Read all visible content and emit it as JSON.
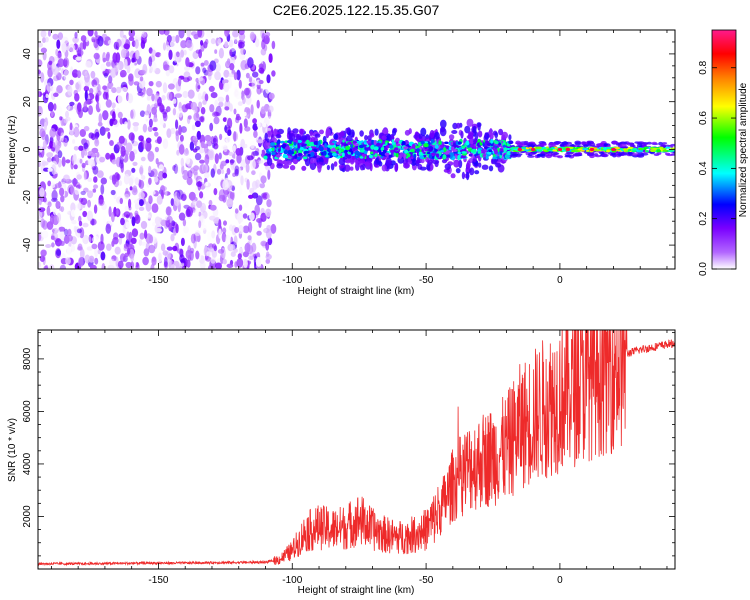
{
  "title": "C2E6.2025.122.15.35.G07",
  "chart_data": [
    {
      "type": "heatmap",
      "title": "C2E6.2025.122.15.35.G07",
      "xlabel": "Height of straight line (km)",
      "ylabel": "Frequency (Hz)",
      "xlim": [
        -195,
        43
      ],
      "ylim": [
        -50,
        50
      ],
      "x_ticks": [
        "-150",
        "-100",
        "-50",
        "0"
      ],
      "y_ticks": [
        "-40",
        "-20",
        "0",
        "20",
        "40"
      ],
      "colorbar": {
        "label": "Normalized spectral amplitude",
        "range": [
          0,
          0.95
        ],
        "ticks": [
          "0.0",
          "0.2",
          "0.4",
          "0.6",
          "0.8"
        ],
        "colors": [
          "#ffffff",
          "#9400d3",
          "#0000ff",
          "#00ffff",
          "#00ff00",
          "#ffff00",
          "#ff7f00",
          "#ff0000",
          "#ff1493"
        ]
      },
      "regions": [
        {
          "x": [
            -195,
            -107
          ],
          "freq_spread": [
            -50,
            50
          ],
          "amplitude": [
            0.0,
            0.2
          ],
          "description_color": "purple"
        },
        {
          "x": [
            -110,
            -18
          ],
          "freq_spread": [
            -8,
            8
          ],
          "amplitude": [
            0.1,
            0.5
          ]
        },
        {
          "x": [
            -18,
            43
          ],
          "freq_spread": [
            -3,
            3
          ],
          "amplitude": [
            0.1,
            0.9
          ]
        }
      ]
    },
    {
      "type": "line",
      "xlabel": "Height of straight line (km)",
      "ylabel": "SNR (10 * v/v)",
      "xlim": [
        -195,
        43
      ],
      "ylim": [
        0,
        9100
      ],
      "x_ticks": [
        "-150",
        "-100",
        "-50",
        "0"
      ],
      "y_ticks": [
        "2000",
        "4000",
        "6000",
        "8000"
      ],
      "line_color": "#ee2a2a",
      "series": [
        {
          "x": [
            -195,
            -180,
            -160,
            -140,
            -120,
            -110,
            -105,
            -100,
            -95,
            -90,
            -85,
            -80,
            -75,
            -70,
            -65,
            -60,
            -55,
            -50,
            -45,
            -40,
            -35,
            -30,
            -25,
            -20,
            -15,
            -10,
            -5,
            0,
            5,
            10,
            15,
            20,
            25,
            30,
            35,
            40,
            43
          ],
          "values": [
            200,
            200,
            220,
            230,
            250,
            260,
            350,
            700,
            1400,
            1600,
            1500,
            1600,
            1900,
            1500,
            1300,
            1200,
            1300,
            1500,
            2200,
            3200,
            3800,
            4100,
            4300,
            4600,
            5400,
            5800,
            6200,
            6600,
            7000,
            7400,
            7700,
            8000,
            8200,
            8350,
            8450,
            8550,
            8600
          ]
        }
      ]
    }
  ]
}
